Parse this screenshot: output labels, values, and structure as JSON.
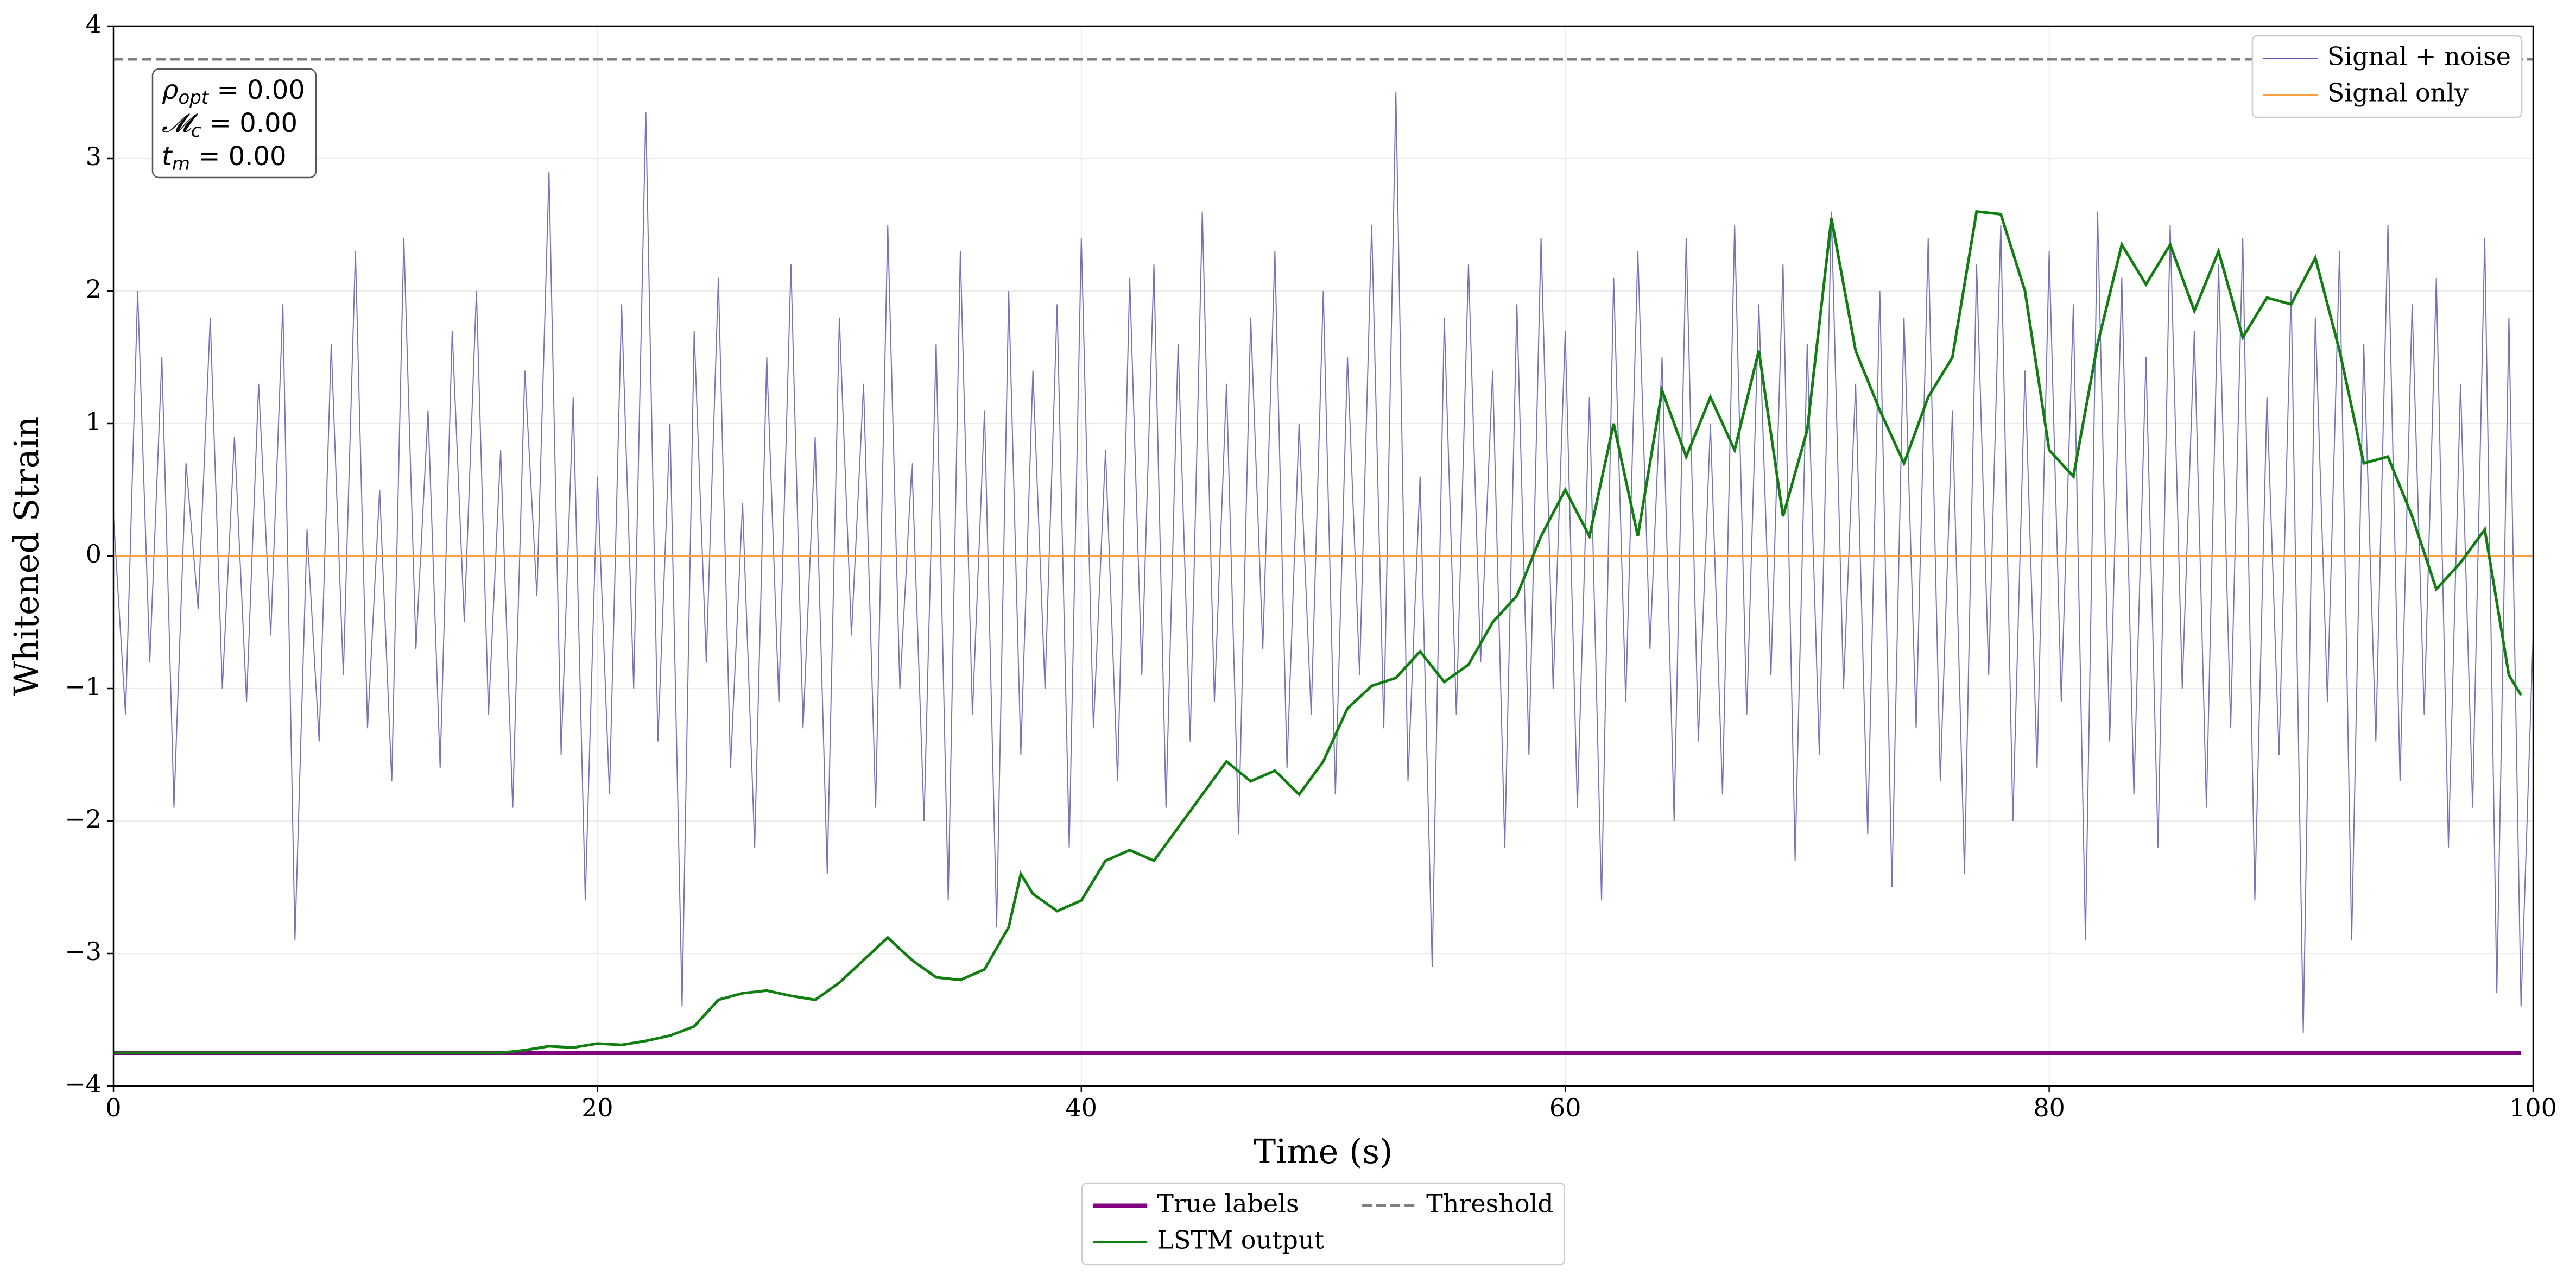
{
  "chart_data": {
    "type": "line",
    "xlabel": "Time (s)",
    "ylabel": "Whitened Strain",
    "xlim": [
      0,
      100
    ],
    "ylim": [
      -4,
      4
    ],
    "xticks": [
      0,
      20,
      40,
      60,
      80,
      100
    ],
    "yticks": [
      {
        "value": -4,
        "label": "−4"
      },
      {
        "value": -3,
        "label": "−3"
      },
      {
        "value": -2,
        "label": "−2"
      },
      {
        "value": -1,
        "label": "−1"
      },
      0,
      1,
      2,
      3,
      4
    ],
    "grid": true,
    "annotations": [
      {
        "symbol": "ρ",
        "subscript": "opt",
        "text": " = 0.00"
      },
      {
        "symbol": "𝓜",
        "subscript": "c",
        "text": " = 0.00"
      },
      {
        "symbol": "t",
        "subscript": "m",
        "text": " = 0.00"
      }
    ],
    "series": [
      {
        "name": "Signal + noise",
        "color": "#5b5bb8",
        "linewidth": 2,
        "dashed": false,
        "legend": "upper right",
        "x": [
          0,
          0.5,
          1,
          1.5,
          2,
          2.5,
          3,
          3.5,
          4,
          4.5,
          5,
          5.5,
          6,
          6.5,
          7,
          7.5,
          8,
          8.5,
          9,
          9.5,
          10,
          10.5,
          11,
          11.5,
          12,
          12.5,
          13,
          13.5,
          14,
          14.5,
          15,
          15.5,
          16,
          16.5,
          17,
          17.5,
          18,
          18.5,
          19,
          19.5,
          20,
          20.5,
          21,
          21.5,
          22,
          22.5,
          23,
          23.5,
          24,
          24.5,
          25,
          25.5,
          26,
          26.5,
          27,
          27.5,
          28,
          28.5,
          29,
          29.5,
          30,
          30.5,
          31,
          31.5,
          32,
          32.5,
          33,
          33.5,
          34,
          34.5,
          35,
          35.5,
          36,
          36.5,
          37,
          37.5,
          38,
          38.5,
          39,
          39.5,
          40,
          40.5,
          41,
          41.5,
          42,
          42.5,
          43,
          43.5,
          44,
          44.5,
          45,
          45.5,
          46,
          46.5,
          47,
          47.5,
          48,
          48.5,
          49,
          49.5,
          50,
          50.5,
          51,
          51.5,
          52,
          52.5,
          53,
          53.5,
          54,
          54.5,
          55,
          55.5,
          56,
          56.5,
          57,
          57.5,
          58,
          58.5,
          59,
          59.5,
          60,
          60.5,
          61,
          61.5,
          62,
          62.5,
          63,
          63.5,
          64,
          64.5,
          65,
          65.5,
          66,
          66.5,
          67,
          67.5,
          68,
          68.5,
          69,
          69.5,
          70,
          70.5,
          71,
          71.5,
          72,
          72.5,
          73,
          73.5,
          74,
          74.5,
          75,
          75.5,
          76,
          76.5,
          77,
          77.5,
          78,
          78.5,
          79,
          79.5,
          80,
          80.5,
          81,
          81.5,
          82,
          82.5,
          83,
          83.5,
          84,
          84.5,
          85,
          85.5,
          86,
          86.5,
          87,
          87.5,
          88,
          88.5,
          89,
          89.5,
          90,
          90.5,
          91,
          91.5,
          92,
          92.5,
          93,
          93.5,
          94,
          94.5,
          95,
          95.5,
          96,
          96.5,
          97,
          97.5,
          98,
          98.5,
          99,
          99.5,
          100
        ],
        "values": [
          0.3,
          -1.2,
          2.0,
          -0.8,
          1.5,
          -1.9,
          0.7,
          -0.4,
          1.8,
          -1.0,
          0.9,
          -1.1,
          1.3,
          -0.6,
          1.9,
          -2.9,
          0.2,
          -1.4,
          1.6,
          -0.9,
          2.3,
          -1.3,
          0.5,
          -1.7,
          2.4,
          -0.7,
          1.1,
          -1.6,
          1.7,
          -0.5,
          2.0,
          -1.2,
          0.8,
          -1.9,
          1.4,
          -0.3,
          2.9,
          -1.5,
          1.2,
          -2.6,
          0.6,
          -1.8,
          1.9,
          -1.0,
          3.35,
          -1.4,
          1.0,
          -3.4,
          1.7,
          -0.8,
          2.1,
          -1.6,
          0.4,
          -2.2,
          1.5,
          -1.1,
          2.2,
          -1.3,
          0.9,
          -2.4,
          1.8,
          -0.6,
          1.3,
          -1.9,
          2.5,
          -1.0,
          0.7,
          -2.0,
          1.6,
          -2.6,
          2.3,
          -1.2,
          1.1,
          -2.8,
          2.0,
          -1.5,
          1.4,
          -1.0,
          1.9,
          -2.2,
          2.4,
          -1.3,
          0.8,
          -1.7,
          2.1,
          -0.9,
          2.2,
          -1.9,
          1.6,
          -1.4,
          2.6,
          -1.1,
          1.3,
          -2.1,
          1.8,
          -0.7,
          2.3,
          -1.6,
          1.0,
          -1.2,
          2.0,
          -1.8,
          1.5,
          -0.9,
          2.5,
          -1.3,
          3.5,
          -1.7,
          0.6,
          -3.1,
          1.8,
          -1.2,
          2.2,
          -0.8,
          1.4,
          -2.2,
          1.9,
          -1.5,
          2.4,
          -1.0,
          1.7,
          -1.9,
          1.2,
          -2.6,
          2.1,
          -1.1,
          2.3,
          -0.7,
          1.5,
          -2.0,
          2.4,
          -1.4,
          1.0,
          -1.8,
          2.5,
          -1.2,
          1.9,
          -0.9,
          2.2,
          -2.3,
          1.6,
          -1.5,
          2.6,
          -1.0,
          1.3,
          -2.1,
          2.0,
          -2.5,
          1.8,
          -1.3,
          2.4,
          -1.7,
          1.1,
          -2.4,
          2.2,
          -0.9,
          2.5,
          -2.0,
          1.4,
          -1.6,
          2.3,
          -1.1,
          1.9,
          -2.9,
          2.6,
          -1.4,
          2.1,
          -1.8,
          1.5,
          -2.2,
          2.5,
          -1.0,
          1.7,
          -1.9,
          2.2,
          -1.3,
          2.4,
          -2.6,
          1.2,
          -1.5,
          2.0,
          -3.6,
          1.8,
          -1.1,
          2.3,
          -2.9,
          1.6,
          -1.4,
          2.5,
          -1.7,
          1.9,
          -1.2,
          2.1,
          -2.2,
          1.3,
          -1.9,
          2.4,
          -3.3,
          1.8,
          -3.4,
          -0.6
        ]
      },
      {
        "name": "Signal only",
        "color": "#ffa040",
        "linewidth": 3,
        "dashed": false,
        "legend": "upper right",
        "x": [
          0,
          100
        ],
        "values": [
          0,
          0
        ]
      },
      {
        "name": "True labels",
        "color": "#800080",
        "linewidth": 8,
        "dashed": false,
        "legend": "lower center",
        "x": [
          0,
          99.5
        ],
        "values": [
          -3.75,
          -3.75
        ]
      },
      {
        "name": "LSTM output",
        "color": "#107f10",
        "linewidth": 5,
        "dashed": false,
        "legend": "lower center",
        "x": [
          0,
          1,
          2,
          3,
          4,
          5,
          6,
          7,
          8,
          9,
          10,
          11,
          12,
          13,
          14,
          15,
          16,
          17,
          18,
          19,
          20,
          21,
          22,
          23,
          24,
          25,
          26,
          27,
          28,
          29,
          30,
          31,
          32,
          33,
          34,
          35,
          36,
          37,
          37.5,
          38,
          39,
          40,
          41,
          42,
          43,
          44,
          45,
          46,
          47,
          48,
          49,
          50,
          51,
          52,
          53,
          54,
          55,
          56,
          57,
          58,
          59,
          60,
          61,
          62,
          63,
          64,
          65,
          66,
          67,
          68,
          69,
          70,
          71,
          72,
          73,
          74,
          75,
          76,
          77,
          78,
          79,
          80,
          81,
          82,
          83,
          84,
          85,
          86,
          87,
          88,
          89,
          90,
          91,
          92,
          93,
          94,
          95,
          96,
          97,
          98,
          99,
          99.5
        ],
        "values": [
          -3.75,
          -3.75,
          -3.75,
          -3.75,
          -3.75,
          -3.75,
          -3.75,
          -3.75,
          -3.75,
          -3.75,
          -3.75,
          -3.75,
          -3.75,
          -3.75,
          -3.75,
          -3.75,
          -3.75,
          -3.73,
          -3.7,
          -3.71,
          -3.68,
          -3.69,
          -3.66,
          -3.62,
          -3.55,
          -3.35,
          -3.3,
          -3.28,
          -3.32,
          -3.35,
          -3.22,
          -3.05,
          -2.88,
          -3.05,
          -3.18,
          -3.2,
          -3.12,
          -2.8,
          -2.4,
          -2.55,
          -2.68,
          -2.6,
          -2.3,
          -2.22,
          -2.3,
          -2.05,
          -1.8,
          -1.55,
          -1.7,
          -1.62,
          -1.8,
          -1.55,
          -1.15,
          -0.98,
          -0.92,
          -0.72,
          -0.95,
          -0.82,
          -0.5,
          -0.3,
          0.15,
          0.5,
          0.15,
          1.0,
          0.15,
          1.25,
          0.75,
          1.2,
          0.8,
          1.55,
          0.3,
          0.95,
          2.55,
          1.55,
          1.1,
          0.7,
          1.2,
          1.5,
          2.6,
          2.58,
          2.0,
          0.8,
          0.6,
          1.6,
          2.35,
          2.05,
          2.35,
          1.85,
          2.3,
          1.65,
          1.95,
          1.9,
          2.25,
          1.55,
          0.7,
          0.75,
          0.3,
          -0.25,
          -0.05,
          0.2,
          -0.9,
          -1.05
        ]
      },
      {
        "name": "Threshold",
        "color": "#7f7f7f",
        "linewidth": 5,
        "dashed": true,
        "legend": "lower center",
        "x": [
          0,
          100
        ],
        "values": [
          3.75,
          3.75
        ]
      }
    ]
  }
}
